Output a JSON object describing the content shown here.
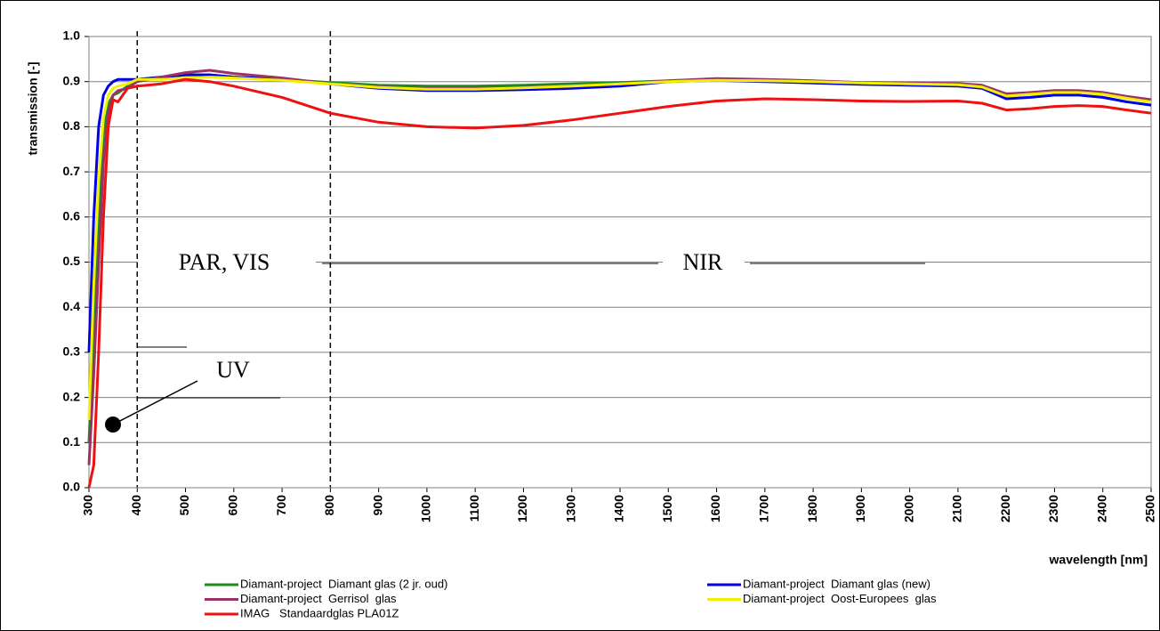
{
  "chart_data": {
    "type": "line",
    "y_label": "transmission [-]",
    "x_label": "wavelength [nm]",
    "x": [
      300,
      310,
      320,
      330,
      340,
      350,
      360,
      380,
      400,
      450,
      500,
      550,
      600,
      700,
      800,
      900,
      1000,
      1100,
      1200,
      1300,
      1400,
      1500,
      1600,
      1700,
      1800,
      1900,
      2000,
      2100,
      2150,
      2200,
      2250,
      2300,
      2350,
      2400,
      2450,
      2500
    ],
    "series": [
      {
        "name": "Diamant-project  Diamant glas (2 jr. oud)",
        "color": "#1e8a1e",
        "values": [
          0.1,
          0.35,
          0.6,
          0.78,
          0.85,
          0.87,
          0.875,
          0.89,
          0.905,
          0.91,
          0.915,
          0.915,
          0.91,
          0.905,
          0.898,
          0.892,
          0.89,
          0.89,
          0.892,
          0.895,
          0.898,
          0.902,
          0.905,
          0.903,
          0.9,
          0.898,
          0.897,
          0.895,
          0.89,
          0.87,
          0.873,
          0.877,
          0.877,
          0.873,
          0.865,
          0.858
        ]
      },
      {
        "name": "Diamant-project  Diamant glas (new)",
        "color": "#0000e0",
        "values": [
          0.3,
          0.6,
          0.8,
          0.87,
          0.89,
          0.9,
          0.905,
          0.905,
          0.905,
          0.91,
          0.915,
          0.915,
          0.91,
          0.905,
          0.895,
          0.885,
          0.88,
          0.88,
          0.882,
          0.885,
          0.89,
          0.9,
          0.903,
          0.9,
          0.897,
          0.894,
          0.892,
          0.89,
          0.885,
          0.862,
          0.865,
          0.87,
          0.87,
          0.865,
          0.855,
          0.848
        ]
      },
      {
        "name": "Diamant-project  Gerrisol  glas",
        "color": "#993366",
        "values": [
          0.05,
          0.25,
          0.5,
          0.72,
          0.83,
          0.87,
          0.88,
          0.885,
          0.9,
          0.91,
          0.92,
          0.925,
          0.918,
          0.908,
          0.895,
          0.888,
          0.885,
          0.885,
          0.887,
          0.89,
          0.895,
          0.902,
          0.907,
          0.905,
          0.902,
          0.898,
          0.897,
          0.896,
          0.892,
          0.873,
          0.876,
          0.88,
          0.88,
          0.876,
          0.867,
          0.86
        ]
      },
      {
        "name": "Diamant-project  Oost-Europees  glas",
        "color": "#f0f000",
        "values": [
          0.15,
          0.45,
          0.68,
          0.82,
          0.87,
          0.885,
          0.89,
          0.895,
          0.905,
          0.905,
          0.908,
          0.91,
          0.908,
          0.903,
          0.895,
          0.887,
          0.883,
          0.883,
          0.886,
          0.89,
          0.895,
          0.9,
          0.903,
          0.902,
          0.9,
          0.897,
          0.895,
          0.893,
          0.888,
          0.868,
          0.872,
          0.876,
          0.876,
          0.872,
          0.863,
          0.855
        ]
      },
      {
        "name": "IMAG   Standaardglas PLA01Z",
        "color": "#ee1111",
        "values": [
          0,
          0.05,
          0.3,
          0.6,
          0.8,
          0.86,
          0.855,
          0.885,
          0.89,
          0.895,
          0.905,
          0.9,
          0.89,
          0.865,
          0.83,
          0.81,
          0.8,
          0.797,
          0.803,
          0.815,
          0.83,
          0.845,
          0.857,
          0.862,
          0.86,
          0.857,
          0.856,
          0.857,
          0.852,
          0.837,
          0.84,
          0.845,
          0.847,
          0.845,
          0.837,
          0.83
        ]
      }
    ],
    "xlim": [
      300,
      2500
    ],
    "xticks": [
      300,
      400,
      500,
      600,
      700,
      800,
      900,
      1000,
      1100,
      1200,
      1300,
      1400,
      1500,
      1600,
      1700,
      1800,
      1900,
      2000,
      2100,
      2200,
      2300,
      2400,
      2500
    ],
    "ylim": [
      0,
      1
    ],
    "yticks": [
      {
        "value": 0,
        "label": "0.0"
      },
      0.1,
      0.2,
      0.3,
      0.4,
      0.5,
      0.6,
      0.7,
      0.8,
      0.9,
      {
        "value": 1,
        "label": "1.0"
      }
    ],
    "grid": true,
    "vlines": [
      400,
      800
    ],
    "annotations": [
      "PAR, VIS",
      "NIR",
      "UV"
    ]
  }
}
